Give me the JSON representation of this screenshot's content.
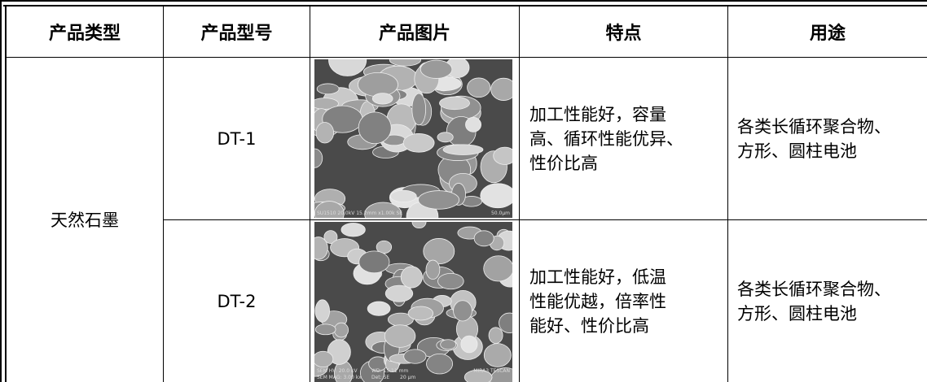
{
  "table": {
    "header": [
      "产品类型",
      "产品型号",
      "产品图片",
      "特点",
      "用途"
    ],
    "rows": [
      {
        "type": "天然石墨",
        "model": "DT-1",
        "image_caption": [
          "SU1510 20.0kV 15.2mm x1.00k SE",
          "50.0μm"
        ],
        "features": [
          "加工性能好，容量",
          "高、循环性能优异、",
          "性价比高"
        ],
        "uses": [
          "各类长循环聚合物、",
          "方形、圆柱电池"
        ]
      },
      {
        "model": "DT-2",
        "image_caption": [
          "SEM HV: 20.0 kV",
          "WD: 15.11 mm",
          "MIRA3 TESCAN",
          "SEM MAG: 3.00 kx",
          "Det: SE",
          "20 μm"
        ],
        "features": [
          "加工性能好，低温",
          "性能优越，倍率性",
          "能好、性价比高"
        ],
        "uses": [
          "各类长循环聚合物、",
          "方形、圆柱电池"
        ]
      }
    ]
  }
}
